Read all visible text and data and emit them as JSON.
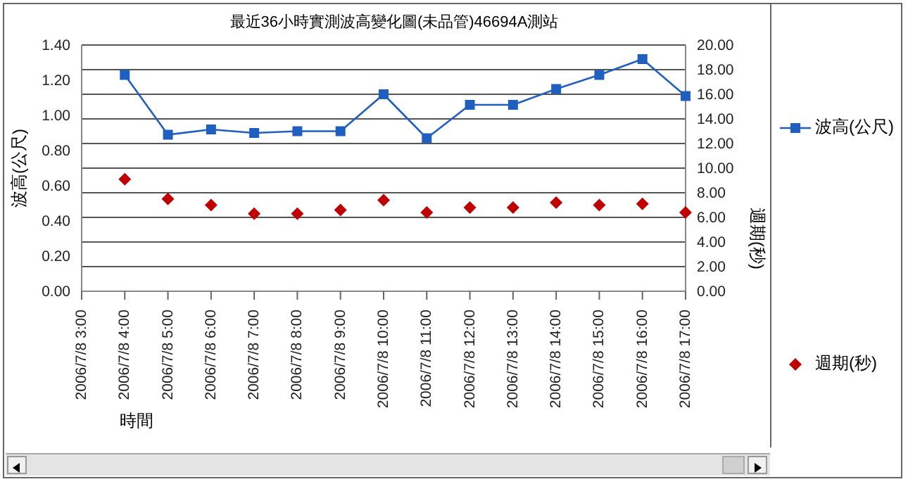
{
  "chart_data": {
    "type": "line",
    "title": "最近36小時實測波高變化圖(未品管)46694A測站",
    "categories": [
      "2006/7/8 3:00",
      "2006/7/8 4:00",
      "2006/7/8 5:00",
      "2006/7/8 6:00",
      "2006/7/8 7:00",
      "2006/7/8 8:00",
      "2006/7/8 9:00",
      "2006/7/8 10:00",
      "2006/7/8 11:00",
      "2006/7/8 12:00",
      "2006/7/8 13:00",
      "2006/7/8 14:00",
      "2006/7/8 15:00",
      "2006/7/8 16:00",
      "2006/7/8 17:00"
    ],
    "series": [
      {
        "name": "波高(公尺)",
        "marker": "square",
        "color": "#1f5fbf",
        "values": [
          null,
          1.23,
          0.89,
          0.92,
          0.9,
          0.91,
          0.91,
          1.12,
          0.87,
          1.06,
          1.06,
          1.15,
          1.23,
          1.32,
          1.11
        ]
      },
      {
        "name": "週期(秒)",
        "type": "scatter",
        "marker": "diamond",
        "axis": "y2",
        "color": "#c00000",
        "values": [
          null,
          9.1,
          7.5,
          7.0,
          6.3,
          6.3,
          6.6,
          7.4,
          6.4,
          6.8,
          6.8,
          7.2,
          7.0,
          7.1,
          6.4
        ]
      }
    ],
    "xlabel": "時間",
    "ylabel": "波高(公尺)",
    "y2label": "週期(秒)",
    "ylim": [
      0,
      1.4
    ],
    "yticks": [
      {
        "value": 0,
        "label": "0.00"
      },
      {
        "value": 0.2,
        "label": "0.20"
      },
      {
        "value": 0.4,
        "label": "0.40"
      },
      {
        "value": 0.6,
        "label": "0.60"
      },
      {
        "value": 0.8,
        "label": "0.80"
      },
      {
        "value": 1,
        "label": "1.00"
      },
      {
        "value": 1.2,
        "label": "1.20"
      },
      {
        "value": 1.4,
        "label": "1.40"
      }
    ],
    "y2lim": [
      0,
      20
    ],
    "y2ticks": [
      {
        "value": 0,
        "label": "0.00"
      },
      {
        "value": 2,
        "label": "2.00"
      },
      {
        "value": 4,
        "label": "4.00"
      },
      {
        "value": 6,
        "label": "6.00"
      },
      {
        "value": 8,
        "label": "8.00"
      },
      {
        "value": 10,
        "label": "10.00"
      },
      {
        "value": 12,
        "label": "12.00"
      },
      {
        "value": 14,
        "label": "14.00"
      },
      {
        "value": 16,
        "label": "16.00"
      },
      {
        "value": 18,
        "label": "18.00"
      },
      {
        "value": 20,
        "label": "20.00"
      }
    ],
    "grid": "y2",
    "legend": "right"
  }
}
